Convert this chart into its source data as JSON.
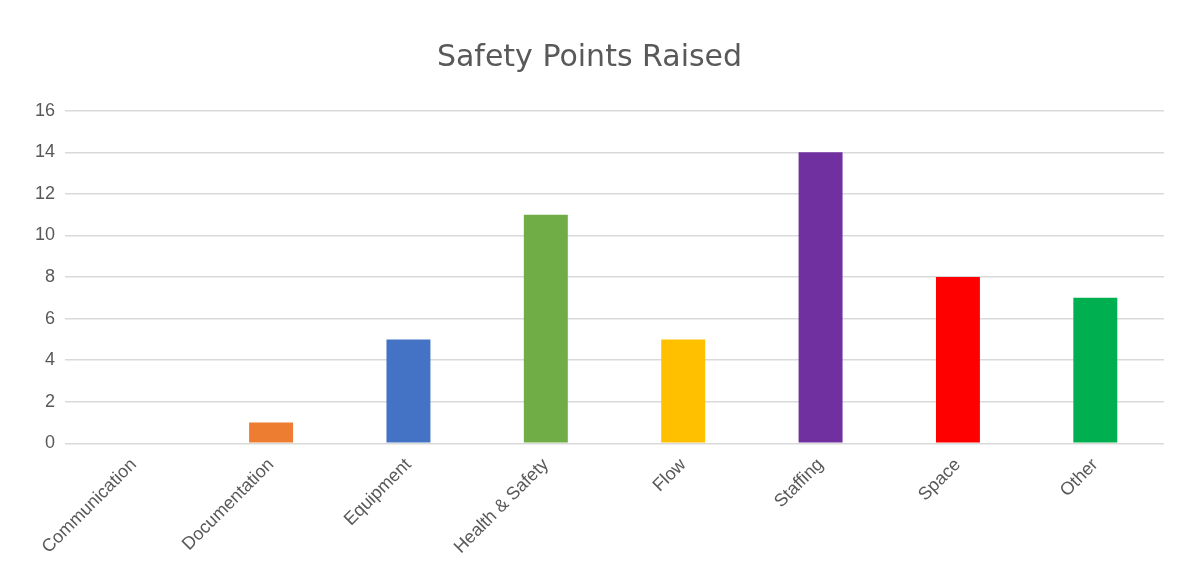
{
  "chart_data": {
    "type": "bar",
    "title": "Safety Points Raised",
    "categories": [
      "Communication",
      "Documentation",
      "Equipment",
      "Health & Safety",
      "Flow",
      "Staffing",
      "Space",
      "Other"
    ],
    "values": [
      0,
      1,
      5,
      11,
      5,
      14,
      8,
      7
    ],
    "colors": [
      "#5b9bd5",
      "#ed7d31",
      "#4472c4",
      "#70ad47",
      "#ffc000",
      "#7030a0",
      "#ff0000",
      "#00b050"
    ],
    "ylim": [
      0,
      16
    ],
    "yticks": [
      0,
      2,
      4,
      6,
      8,
      10,
      12,
      14,
      16
    ],
    "grid": "y",
    "legend": false
  }
}
